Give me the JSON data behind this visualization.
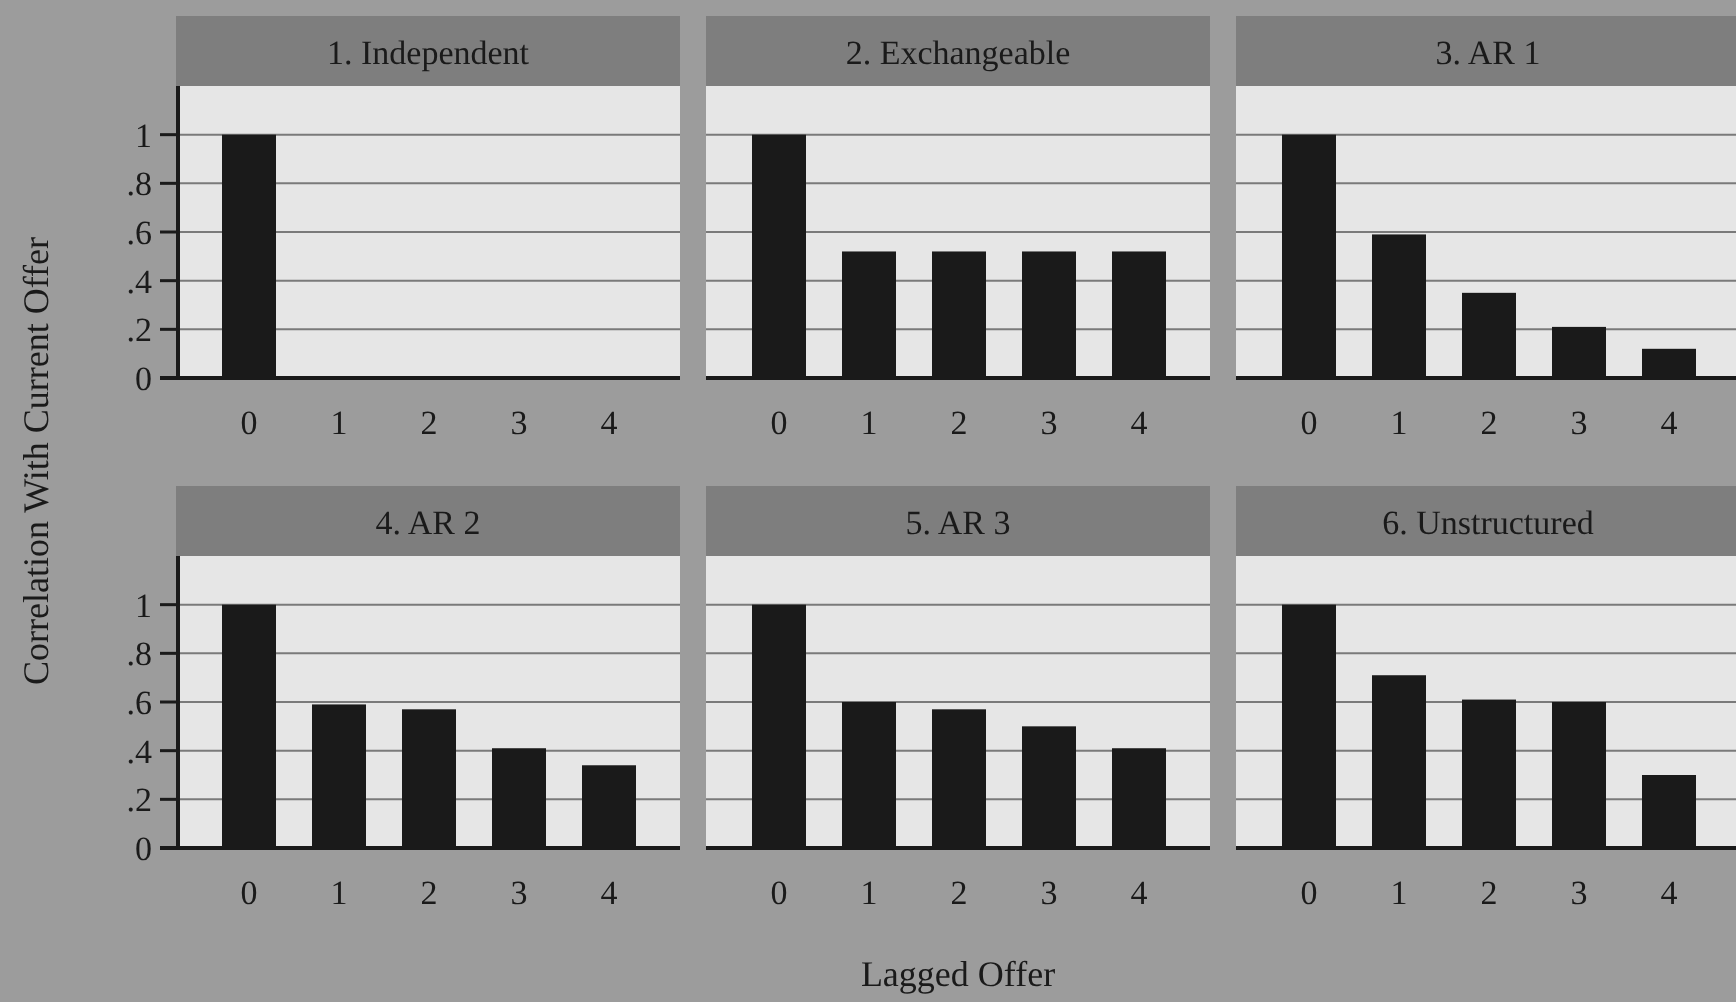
{
  "chart_data": [
    {
      "type": "bar",
      "title": "1. Independent",
      "ylabel": "Correlation With Current Offer",
      "categories": [
        "0",
        "1",
        "2",
        "3",
        "4"
      ],
      "values": [
        1,
        0,
        0,
        0,
        0
      ],
      "color": "#1a1a1a",
      "ylim": [
        0,
        1.2
      ],
      "yticks": [
        0,
        {
          "value": 0.2,
          "label": ".2"
        },
        {
          "value": 0.4,
          "label": ".4"
        },
        {
          "value": 0.6,
          "label": ".6"
        },
        {
          "value": 0.8,
          "label": ".8"
        },
        1
      ],
      "grid": "y"
    },
    {
      "type": "bar",
      "title": "2. Exchangeable",
      "categories": [
        "0",
        "1",
        "2",
        "3",
        "4"
      ],
      "values": [
        1,
        0.52,
        0.52,
        0.52,
        0.52
      ],
      "color": "#1a1a1a",
      "ylim": [
        0,
        1.2
      ],
      "yticks": [
        0,
        0.2,
        0.4,
        0.6,
        0.8,
        1
      ],
      "grid": "y",
      "tick_labels": "x"
    },
    {
      "type": "bar",
      "title": "3. AR 1",
      "categories": [
        "0",
        "1",
        "2",
        "3",
        "4"
      ],
      "values": [
        1,
        0.59,
        0.35,
        0.21,
        0.12
      ],
      "color": "#1a1a1a",
      "ylim": [
        0,
        1.2
      ],
      "yticks": [
        0,
        0.2,
        0.4,
        0.6,
        0.8,
        1
      ],
      "grid": "y",
      "tick_labels": "x"
    },
    {
      "type": "bar",
      "title": "4. AR 2",
      "categories": [
        "0",
        "1",
        "2",
        "3",
        "4"
      ],
      "values": [
        1,
        0.59,
        0.57,
        0.41,
        0.34
      ],
      "color": "#1a1a1a",
      "ylim": [
        0,
        1.2
      ],
      "yticks": [
        0,
        {
          "value": 0.2,
          "label": ".2"
        },
        {
          "value": 0.4,
          "label": ".4"
        },
        {
          "value": 0.6,
          "label": ".6"
        },
        {
          "value": 0.8,
          "label": ".8"
        },
        1
      ],
      "grid": "y"
    },
    {
      "type": "bar",
      "title": "5. AR 3",
      "xlabel": "Lagged Offer",
      "categories": [
        "0",
        "1",
        "2",
        "3",
        "4"
      ],
      "values": [
        1,
        0.6,
        0.57,
        0.5,
        0.41
      ],
      "color": "#1a1a1a",
      "ylim": [
        0,
        1.2
      ],
      "yticks": [
        0,
        0.2,
        0.4,
        0.6,
        0.8,
        1
      ],
      "grid": "y",
      "tick_labels": "x"
    },
    {
      "type": "bar",
      "title": "6. Unstructured",
      "categories": [
        "0",
        "1",
        "2",
        "3",
        "4"
      ],
      "values": [
        1,
        0.71,
        0.61,
        0.6,
        0.3
      ],
      "color": "#1a1a1a",
      "ylim": [
        0,
        1.2
      ],
      "yticks": [
        0,
        0.2,
        0.4,
        0.6,
        0.8,
        1
      ],
      "grid": "y",
      "tick_labels": "x"
    }
  ]
}
